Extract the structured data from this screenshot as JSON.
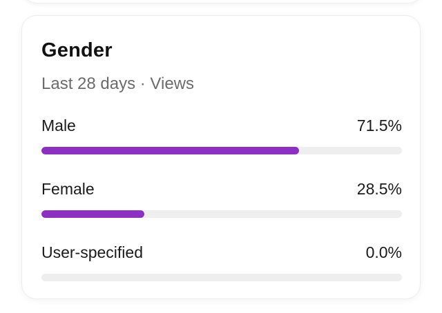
{
  "card": {
    "title": "Gender",
    "subtitle": "Last 28 days · Views"
  },
  "accent_color": "#8e2fc4",
  "track_color": "#eeeeee",
  "rows": [
    {
      "label": "Male",
      "value_text": "71.5%",
      "percent": 71.5
    },
    {
      "label": "Female",
      "value_text": "28.5%",
      "percent": 28.5
    },
    {
      "label": "User-specified",
      "value_text": "0.0%",
      "percent": 0.0
    }
  ]
}
